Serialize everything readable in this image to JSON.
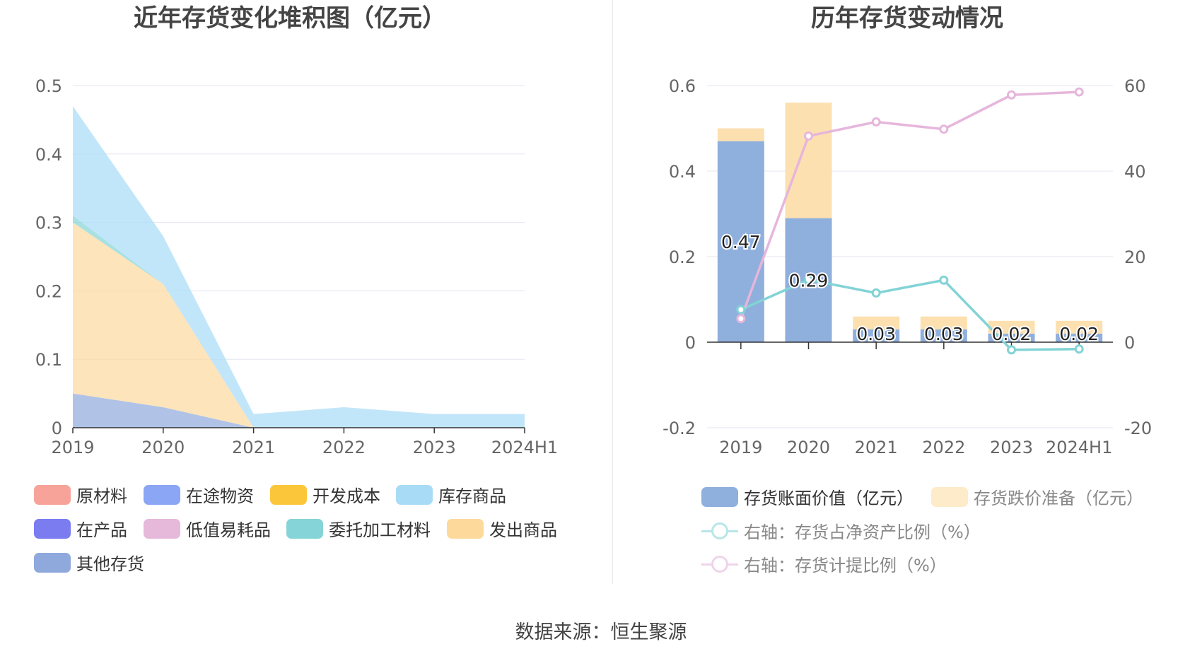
{
  "left_chart_title": "近年存货变化堆积图（亿元）",
  "right_chart_title": "历年存货变动情况",
  "source": "数据来源：恒生聚源",
  "colors": {
    "原材料": "#f7a399",
    "在途物资": "#8aa6f5",
    "开发成本": "#fcc63a",
    "库存商品": "#a8dcf6",
    "在产品": "#7b7cf0",
    "低值易耗品": "#e6b9db",
    "委托加工材料": "#85d4d7",
    "发出商品": "#fdd99c",
    "其他存货": "#8fa9dd",
    "存货账面价值": "#8fafdd",
    "存货跌价准备": "#fde0b0",
    "net_ratio_line": "#82d3d6",
    "provision_ratio_line": "#e6b6db"
  },
  "chart_data": [
    {
      "type": "area",
      "title": "近年存货变化堆积图（亿元）",
      "stacked": true,
      "x": [
        "2019",
        "2020",
        "2021",
        "2022",
        "2023",
        "2024H1"
      ],
      "ylim": [
        0,
        0.5
      ],
      "yticks": [
        "0",
        "0.1",
        "0.2",
        "0.3",
        "0.4",
        "0.5"
      ],
      "grid": true,
      "legend_position": "bottom",
      "legend": [
        "原材料",
        "在途物资",
        "开发成本",
        "库存商品",
        "在产品",
        "低值易耗品",
        "委托加工材料",
        "发出商品",
        "其他存货"
      ],
      "series": [
        {
          "name": "其他存货",
          "values": [
            0.05,
            0.03,
            0,
            0,
            0,
            0
          ]
        },
        {
          "name": "发出商品",
          "values": [
            0.25,
            0.18,
            0,
            0,
            0,
            0
          ]
        },
        {
          "name": "委托加工材料",
          "values": [
            0.01,
            0,
            0,
            0,
            0,
            0
          ]
        },
        {
          "name": "库存商品",
          "values": [
            0.16,
            0.07,
            0.02,
            0.03,
            0.02,
            0.02
          ]
        },
        {
          "name": "原材料",
          "values": [
            0,
            0,
            0,
            0,
            0,
            0
          ]
        },
        {
          "name": "在途物资",
          "values": [
            0,
            0,
            0,
            0,
            0,
            0
          ]
        },
        {
          "name": "开发成本",
          "values": [
            0,
            0,
            0,
            0,
            0,
            0
          ]
        },
        {
          "name": "在产品",
          "values": [
            0,
            0,
            0,
            0,
            0,
            0
          ]
        },
        {
          "name": "低值易耗品",
          "values": [
            0,
            0,
            0,
            0,
            0,
            0
          ]
        }
      ]
    },
    {
      "type": "bar",
      "title": "历年存货变动情况",
      "stacked": true,
      "categories": [
        "2019",
        "2020",
        "2021",
        "2022",
        "2023",
        "2024H1"
      ],
      "ylim": [
        -0.2,
        0.6
      ],
      "yticks": [
        "-0.2",
        "0",
        "0.2",
        "0.4",
        "0.6"
      ],
      "y2lim": [
        -20,
        60
      ],
      "y2ticks": [
        "-20",
        "0",
        "20",
        "40",
        "60"
      ],
      "grid": true,
      "legend_position": "bottom",
      "bar_series": [
        {
          "name": "存货账面价值（亿元）",
          "values": [
            0.47,
            0.29,
            0.03,
            0.03,
            0.02,
            0.02
          ],
          "labels": [
            "0.47",
            "0.29",
            "0.03",
            "0.03",
            "0.02",
            "0.02"
          ]
        },
        {
          "name": "存货跌价准备（亿元）",
          "values": [
            0.03,
            0.27,
            0.03,
            0.03,
            0.03,
            0.03
          ]
        }
      ],
      "line_series": [
        {
          "name": "右轴：存货占净资产比例（%）",
          "axis": "right",
          "values": [
            7.6,
            14.6,
            11.5,
            14.5,
            -1.8,
            -1.6
          ]
        },
        {
          "name": "右轴：存货计提比例（%）",
          "axis": "right",
          "values": [
            5.5,
            48.2,
            51.5,
            49.8,
            57.8,
            58.5
          ]
        }
      ]
    }
  ]
}
